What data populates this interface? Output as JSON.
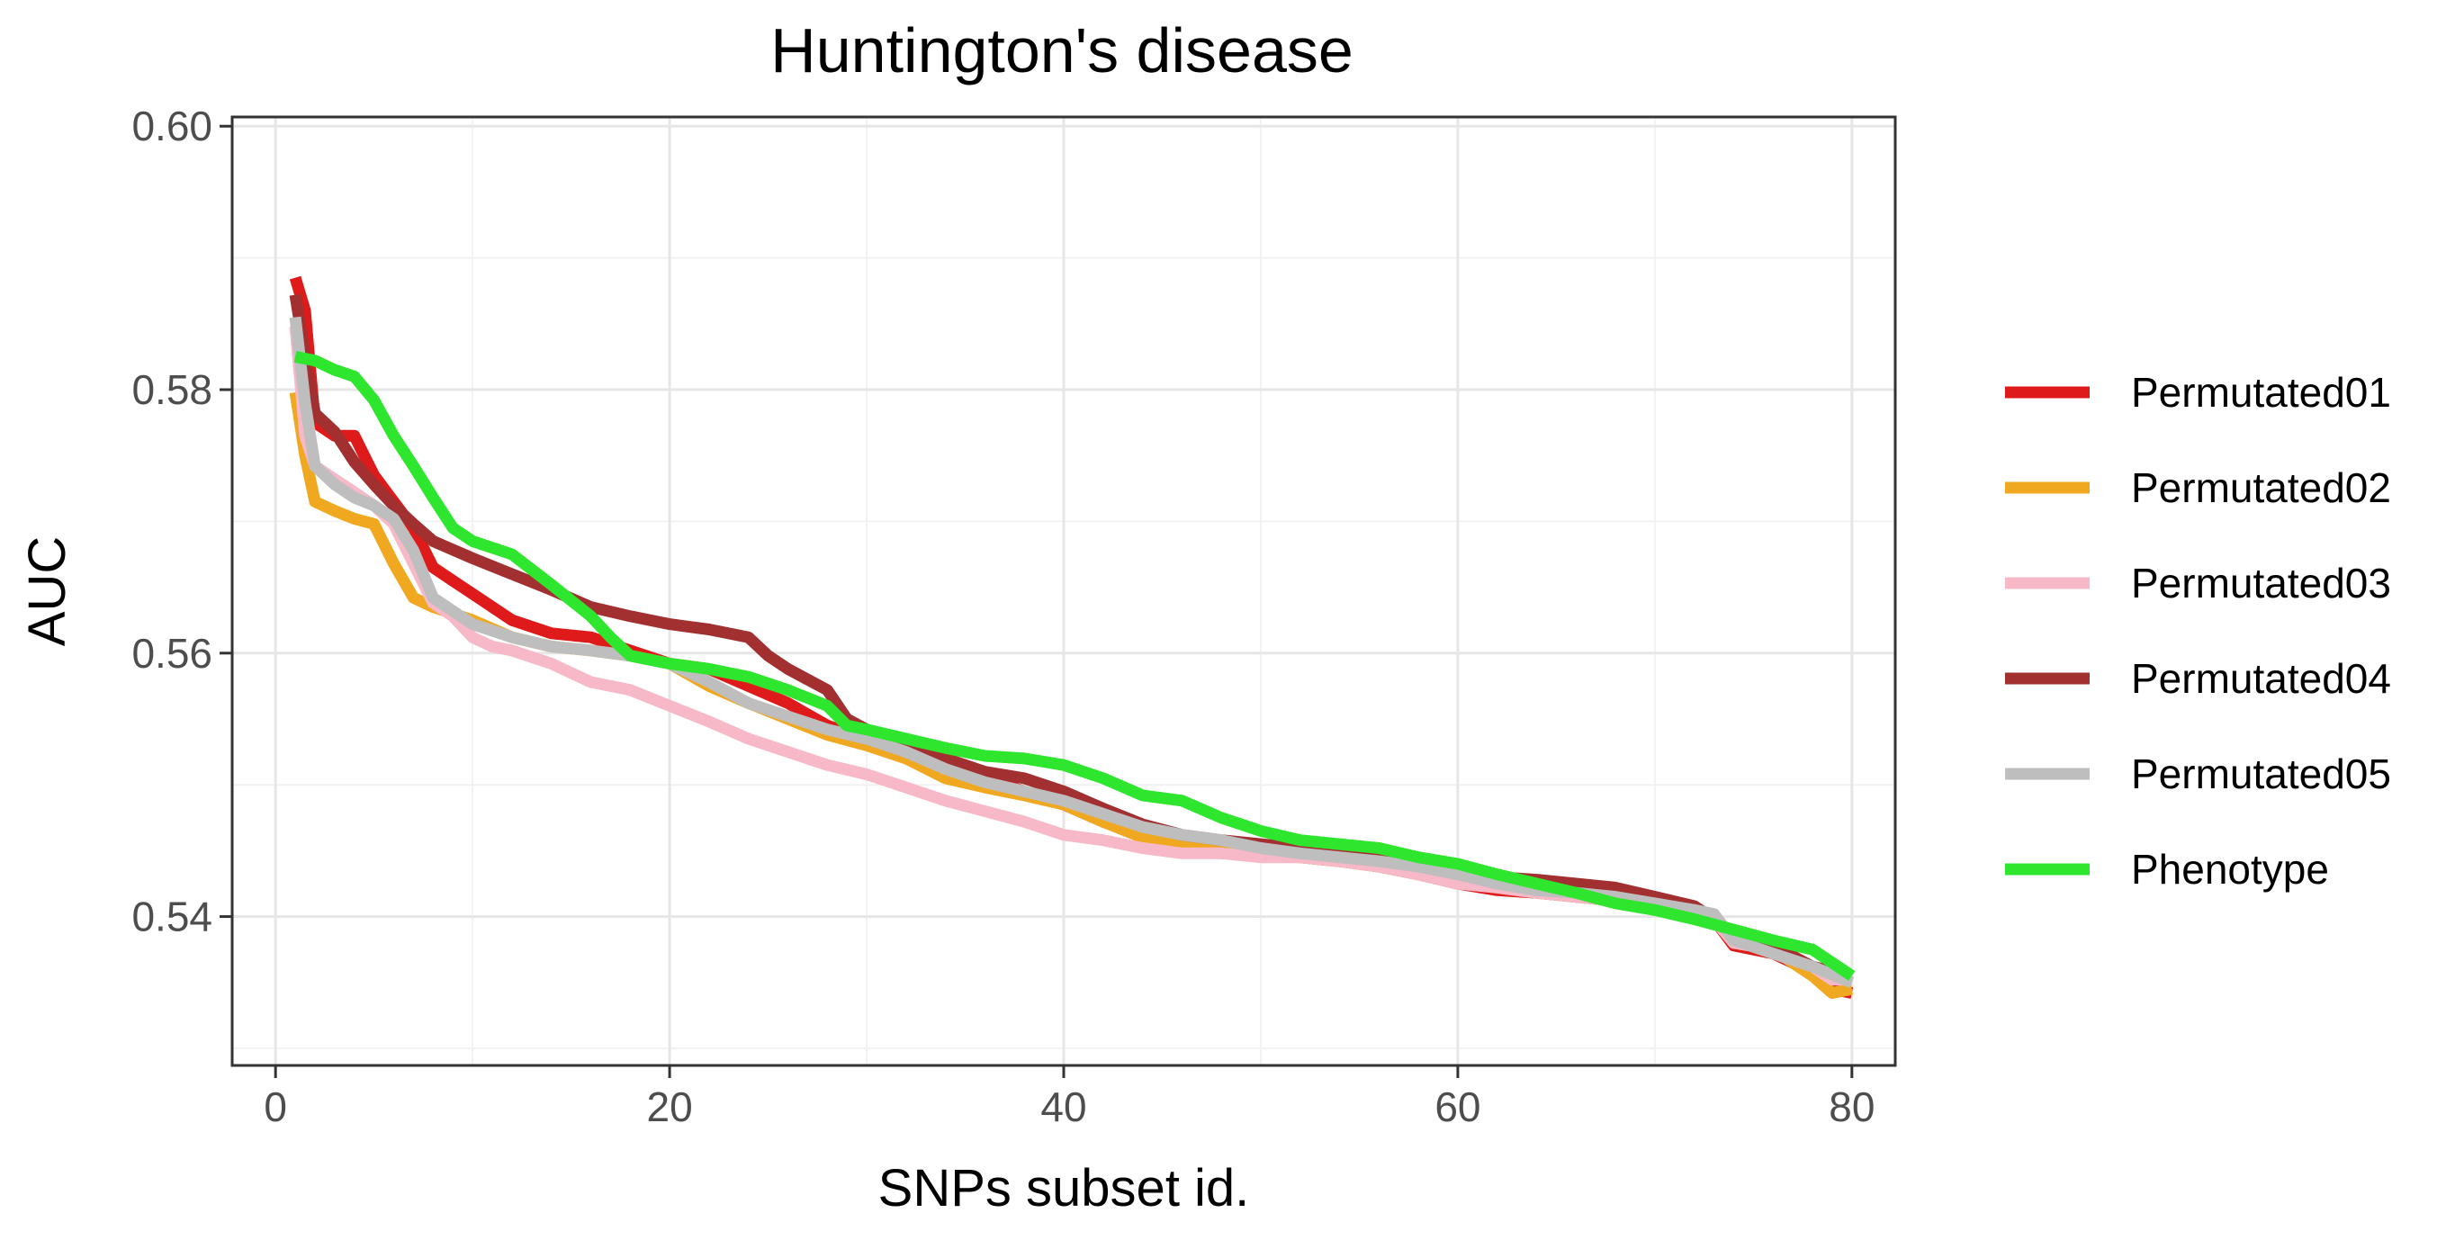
{
  "chart_data": {
    "type": "line",
    "title": "Huntington's disease",
    "xlabel": "SNPs subset id.",
    "ylabel": "AUC",
    "xlim": [
      -2.2,
      82.2
    ],
    "ylim": [
      0.5287,
      0.6007
    ],
    "x_ticks": [
      0,
      20,
      40,
      60,
      80
    ],
    "x_tick_labels": [
      "0",
      "20",
      "40",
      "60",
      "80"
    ],
    "y_ticks": [
      0.54,
      0.56,
      0.58,
      0.6
    ],
    "y_tick_labels": [
      "0.54",
      "0.56",
      "0.58",
      "0.60"
    ],
    "grid": true,
    "legend_position": "right",
    "series": [
      {
        "name": "Permutated01",
        "color": "#de1a1a",
        "points": [
          [
            1,
            0.5885
          ],
          [
            1.5,
            0.586
          ],
          [
            2,
            0.5775
          ],
          [
            3,
            0.5765
          ],
          [
            4,
            0.5765
          ],
          [
            5,
            0.5735
          ],
          [
            6,
            0.5715
          ],
          [
            7,
            0.5695
          ],
          [
            8,
            0.5665
          ],
          [
            9,
            0.5655
          ],
          [
            10,
            0.5645
          ],
          [
            12,
            0.5625
          ],
          [
            14,
            0.5615
          ],
          [
            16,
            0.5612
          ],
          [
            18,
            0.5602
          ],
          [
            20,
            0.5592
          ],
          [
            22,
            0.5588
          ],
          [
            24,
            0.5575
          ],
          [
            26,
            0.5562
          ],
          [
            28,
            0.5545
          ],
          [
            30,
            0.5535
          ],
          [
            32,
            0.5525
          ],
          [
            34,
            0.5515
          ],
          [
            36,
            0.5505
          ],
          [
            38,
            0.5495
          ],
          [
            40,
            0.5485
          ],
          [
            42,
            0.5472
          ],
          [
            44,
            0.5462
          ],
          [
            46,
            0.5458
          ],
          [
            48,
            0.5452
          ],
          [
            50,
            0.5448
          ],
          [
            52,
            0.5445
          ],
          [
            54,
            0.5442
          ],
          [
            56,
            0.5438
          ],
          [
            58,
            0.5432
          ],
          [
            60,
            0.5425
          ],
          [
            62,
            0.542
          ],
          [
            64,
            0.5418
          ],
          [
            66,
            0.5415
          ],
          [
            68,
            0.5412
          ],
          [
            70,
            0.5405
          ],
          [
            72,
            0.5402
          ],
          [
            73,
            0.5398
          ],
          [
            74,
            0.5378
          ],
          [
            76,
            0.5372
          ],
          [
            78,
            0.5358
          ],
          [
            79,
            0.5345
          ],
          [
            80,
            0.5342
          ]
        ]
      },
      {
        "name": "Permutated02",
        "color": "#f0a820",
        "points": [
          [
            1,
            0.5798
          ],
          [
            1.5,
            0.575
          ],
          [
            2,
            0.5715
          ],
          [
            3,
            0.5708
          ],
          [
            4,
            0.5702
          ],
          [
            5,
            0.5698
          ],
          [
            6,
            0.5668
          ],
          [
            7,
            0.5642
          ],
          [
            8,
            0.5635
          ],
          [
            10,
            0.5625
          ],
          [
            12,
            0.5612
          ],
          [
            14,
            0.5605
          ],
          [
            16,
            0.5602
          ],
          [
            18,
            0.5598
          ],
          [
            20,
            0.5592
          ],
          [
            22,
            0.5575
          ],
          [
            24,
            0.5562
          ],
          [
            26,
            0.555
          ],
          [
            28,
            0.5538
          ],
          [
            30,
            0.553
          ],
          [
            32,
            0.552
          ],
          [
            34,
            0.5505
          ],
          [
            36,
            0.5498
          ],
          [
            38,
            0.5492
          ],
          [
            40,
            0.5485
          ],
          [
            42,
            0.5472
          ],
          [
            44,
            0.546
          ],
          [
            46,
            0.5455
          ],
          [
            48,
            0.545
          ],
          [
            50,
            0.5448
          ],
          [
            52,
            0.5445
          ],
          [
            54,
            0.5442
          ],
          [
            56,
            0.5438
          ],
          [
            58,
            0.5432
          ],
          [
            60,
            0.5428
          ],
          [
            62,
            0.5422
          ],
          [
            64,
            0.5418
          ],
          [
            66,
            0.5415
          ],
          [
            68,
            0.5412
          ],
          [
            70,
            0.5408
          ],
          [
            72,
            0.5402
          ],
          [
            73,
            0.5398
          ],
          [
            74,
            0.538
          ],
          [
            76,
            0.5375
          ],
          [
            78,
            0.5355
          ],
          [
            79,
            0.5342
          ],
          [
            80,
            0.5345
          ]
        ]
      },
      {
        "name": "Permutated03",
        "color": "#f7b8c8",
        "points": [
          [
            1,
            0.5848
          ],
          [
            1.5,
            0.5765
          ],
          [
            2,
            0.5742
          ],
          [
            3,
            0.5732
          ],
          [
            4,
            0.5722
          ],
          [
            5,
            0.5712
          ],
          [
            6,
            0.5698
          ],
          [
            7,
            0.5668
          ],
          [
            8,
            0.5638
          ],
          [
            9,
            0.5628
          ],
          [
            10,
            0.5612
          ],
          [
            11,
            0.5605
          ],
          [
            12,
            0.5602
          ],
          [
            14,
            0.5592
          ],
          [
            16,
            0.5578
          ],
          [
            18,
            0.5572
          ],
          [
            20,
            0.556
          ],
          [
            22,
            0.5548
          ],
          [
            24,
            0.5535
          ],
          [
            26,
            0.5525
          ],
          [
            28,
            0.5515
          ],
          [
            30,
            0.5508
          ],
          [
            32,
            0.5498
          ],
          [
            34,
            0.5488
          ],
          [
            36,
            0.548
          ],
          [
            38,
            0.5472
          ],
          [
            40,
            0.5462
          ],
          [
            42,
            0.5458
          ],
          [
            44,
            0.5452
          ],
          [
            46,
            0.5448
          ],
          [
            48,
            0.5448
          ],
          [
            50,
            0.5445
          ],
          [
            52,
            0.5445
          ],
          [
            54,
            0.5442
          ],
          [
            56,
            0.5438
          ],
          [
            58,
            0.5432
          ],
          [
            60,
            0.5425
          ],
          [
            62,
            0.5422
          ],
          [
            64,
            0.5418
          ],
          [
            66,
            0.5415
          ],
          [
            68,
            0.5412
          ],
          [
            70,
            0.5408
          ],
          [
            72,
            0.5402
          ],
          [
            73,
            0.5398
          ],
          [
            74,
            0.538
          ],
          [
            76,
            0.5375
          ],
          [
            78,
            0.5362
          ],
          [
            79,
            0.5352
          ],
          [
            80,
            0.5352
          ]
        ]
      },
      {
        "name": "Permutated04",
        "color": "#a33030",
        "points": [
          [
            1,
            0.5872
          ],
          [
            1.5,
            0.5825
          ],
          [
            2,
            0.5782
          ],
          [
            3,
            0.5768
          ],
          [
            4,
            0.5745
          ],
          [
            5,
            0.5728
          ],
          [
            6,
            0.5712
          ],
          [
            7,
            0.5698
          ],
          [
            8,
            0.5685
          ],
          [
            10,
            0.5672
          ],
          [
            12,
            0.566
          ],
          [
            14,
            0.5648
          ],
          [
            16,
            0.5635
          ],
          [
            18,
            0.5628
          ],
          [
            20,
            0.5622
          ],
          [
            22,
            0.5618
          ],
          [
            24,
            0.5612
          ],
          [
            25,
            0.5598
          ],
          [
            26,
            0.5588
          ],
          [
            28,
            0.5572
          ],
          [
            29,
            0.555
          ],
          [
            30,
            0.5542
          ],
          [
            32,
            0.5532
          ],
          [
            34,
            0.552
          ],
          [
            36,
            0.551
          ],
          [
            38,
            0.5505
          ],
          [
            40,
            0.5495
          ],
          [
            42,
            0.5482
          ],
          [
            44,
            0.547
          ],
          [
            46,
            0.5462
          ],
          [
            48,
            0.5458
          ],
          [
            50,
            0.5455
          ],
          [
            52,
            0.5452
          ],
          [
            54,
            0.5448
          ],
          [
            56,
            0.5445
          ],
          [
            58,
            0.544
          ],
          [
            60,
            0.5435
          ],
          [
            62,
            0.543
          ],
          [
            64,
            0.5428
          ],
          [
            66,
            0.5425
          ],
          [
            68,
            0.5422
          ],
          [
            70,
            0.5415
          ],
          [
            72,
            0.5408
          ],
          [
            73,
            0.5398
          ],
          [
            74,
            0.5385
          ],
          [
            76,
            0.5378
          ],
          [
            78,
            0.5362
          ],
          [
            80,
            0.5355
          ]
        ]
      },
      {
        "name": "Permutated05",
        "color": "#bebebe",
        "points": [
          [
            1,
            0.5855
          ],
          [
            1.5,
            0.579
          ],
          [
            2,
            0.5742
          ],
          [
            3,
            0.5728
          ],
          [
            4,
            0.5718
          ],
          [
            5,
            0.5712
          ],
          [
            6,
            0.5702
          ],
          [
            7,
            0.5678
          ],
          [
            8,
            0.5642
          ],
          [
            9,
            0.5632
          ],
          [
            10,
            0.5622
          ],
          [
            12,
            0.5612
          ],
          [
            14,
            0.5605
          ],
          [
            16,
            0.5602
          ],
          [
            18,
            0.5598
          ],
          [
            20,
            0.5592
          ],
          [
            22,
            0.5578
          ],
          [
            24,
            0.5562
          ],
          [
            26,
            0.5552
          ],
          [
            28,
            0.5542
          ],
          [
            30,
            0.5535
          ],
          [
            32,
            0.5525
          ],
          [
            34,
            0.5512
          ],
          [
            36,
            0.5502
          ],
          [
            38,
            0.5495
          ],
          [
            40,
            0.5488
          ],
          [
            42,
            0.5478
          ],
          [
            44,
            0.5468
          ],
          [
            46,
            0.5462
          ],
          [
            48,
            0.5458
          ],
          [
            50,
            0.5452
          ],
          [
            52,
            0.5448
          ],
          [
            54,
            0.5445
          ],
          [
            56,
            0.5442
          ],
          [
            58,
            0.5438
          ],
          [
            60,
            0.5432
          ],
          [
            62,
            0.5425
          ],
          [
            64,
            0.542
          ],
          [
            66,
            0.5418
          ],
          [
            68,
            0.5415
          ],
          [
            70,
            0.541
          ],
          [
            72,
            0.5405
          ],
          [
            73,
            0.5402
          ],
          [
            74,
            0.5382
          ],
          [
            76,
            0.5372
          ],
          [
            78,
            0.5362
          ],
          [
            80,
            0.535
          ]
        ]
      },
      {
        "name": "Phenotype",
        "color": "#2ee62e",
        "points": [
          [
            1,
            0.5825
          ],
          [
            2,
            0.5822
          ],
          [
            3,
            0.5815
          ],
          [
            4,
            0.581
          ],
          [
            5,
            0.5792
          ],
          [
            6,
            0.5765
          ],
          [
            7,
            0.5742
          ],
          [
            8,
            0.5718
          ],
          [
            9,
            0.5695
          ],
          [
            10,
            0.5685
          ],
          [
            12,
            0.5675
          ],
          [
            14,
            0.5652
          ],
          [
            16,
            0.5628
          ],
          [
            17,
            0.5612
          ],
          [
            18,
            0.5598
          ],
          [
            20,
            0.5592
          ],
          [
            22,
            0.5588
          ],
          [
            24,
            0.5582
          ],
          [
            26,
            0.5572
          ],
          [
            28,
            0.556
          ],
          [
            29,
            0.5545
          ],
          [
            30,
            0.5542
          ],
          [
            32,
            0.5535
          ],
          [
            34,
            0.5528
          ],
          [
            36,
            0.5522
          ],
          [
            38,
            0.552
          ],
          [
            40,
            0.5515
          ],
          [
            42,
            0.5505
          ],
          [
            44,
            0.5492
          ],
          [
            46,
            0.5488
          ],
          [
            48,
            0.5475
          ],
          [
            50,
            0.5465
          ],
          [
            52,
            0.5458
          ],
          [
            54,
            0.5455
          ],
          [
            56,
            0.5452
          ],
          [
            58,
            0.5445
          ],
          [
            60,
            0.544
          ],
          [
            62,
            0.5432
          ],
          [
            64,
            0.5425
          ],
          [
            66,
            0.5418
          ],
          [
            68,
            0.541
          ],
          [
            70,
            0.5405
          ],
          [
            72,
            0.5398
          ],
          [
            74,
            0.539
          ],
          [
            76,
            0.5382
          ],
          [
            78,
            0.5375
          ],
          [
            79,
            0.5365
          ],
          [
            80,
            0.5355
          ]
        ]
      }
    ]
  }
}
